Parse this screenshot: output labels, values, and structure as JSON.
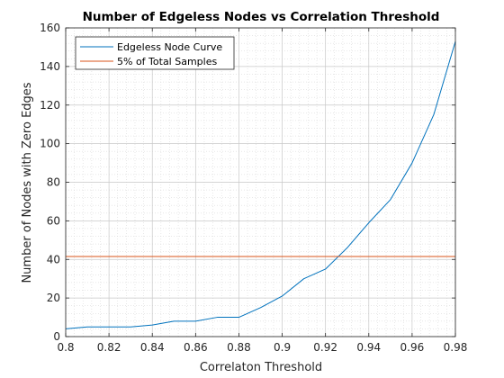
{
  "chart_data": {
    "type": "line",
    "title": "Number of Edgeless Nodes vs Correlation Threshold",
    "xlabel": "Correlaton Threshold",
    "ylabel": "Number of Nodes with Zero Edges",
    "xlim": [
      0.8,
      0.98
    ],
    "ylim": [
      0,
      160
    ],
    "xticks": [
      0.8,
      0.82,
      0.84,
      0.86,
      0.88,
      0.9,
      0.92,
      0.94,
      0.96,
      0.98
    ],
    "xtick_labels": [
      "0.8",
      "0.82",
      "0.84",
      "0.86",
      "0.88",
      "0.9",
      "0.92",
      "0.94",
      "0.96",
      "0.98"
    ],
    "yticks": [
      0,
      20,
      40,
      60,
      80,
      100,
      120,
      140,
      160
    ],
    "yticks_labels": [
      "0",
      "20",
      "40",
      "60",
      "80",
      "100",
      "120",
      "140",
      "160"
    ],
    "grid": true,
    "minor_grid": true,
    "legend_position": "top-left",
    "series": [
      {
        "name": "Edgeless Node Curve",
        "color": "#0072BD",
        "x": [
          0.8,
          0.81,
          0.82,
          0.83,
          0.84,
          0.85,
          0.86,
          0.87,
          0.88,
          0.89,
          0.9,
          0.91,
          0.92,
          0.93,
          0.94,
          0.95,
          0.96,
          0.97,
          0.98
        ],
        "y": [
          4,
          5,
          5,
          5,
          6,
          8,
          8,
          10,
          10,
          15,
          21,
          30,
          35,
          46,
          59,
          71,
          90,
          115,
          153
        ]
      },
      {
        "name": "5% of Total Samples",
        "color": "#D95319",
        "x": [
          0.8,
          0.98
        ],
        "y": [
          41.5,
          41.5
        ]
      }
    ]
  }
}
